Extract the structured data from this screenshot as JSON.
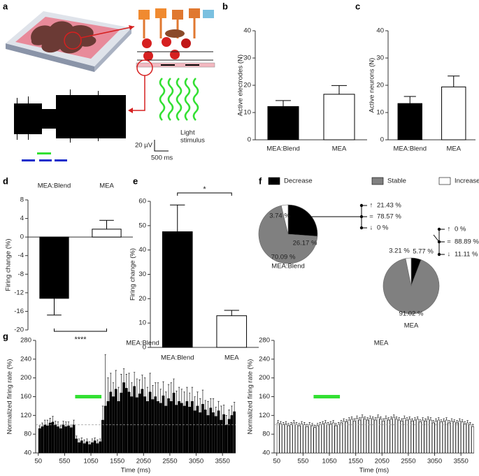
{
  "illustration": {
    "panel": "a",
    "scale_y": "20 µV",
    "scale_x": "500 ms",
    "stimulus_label": [
      "Light",
      "stimulus"
    ]
  },
  "chart_data": [
    {
      "type": "bar",
      "panel": "b",
      "y_label": "Active electrodes (N)",
      "categories": [
        "MEA:Blend",
        "MEA"
      ],
      "values": [
        12.2,
        16.7
      ],
      "errors": [
        2.2,
        3.2
      ],
      "colors": [
        "#000000",
        "#ffffff"
      ],
      "ylim": [
        0,
        40
      ],
      "yticks": [
        0,
        10,
        20,
        30,
        40
      ]
    },
    {
      "type": "bar",
      "panel": "c",
      "y_label": "Active neurons (N)",
      "categories": [
        "MEA:Blend",
        "MEA"
      ],
      "values": [
        13.3,
        19.4
      ],
      "errors": [
        2.6,
        4.0
      ],
      "colors": [
        "#000000",
        "#ffffff"
      ],
      "ylim": [
        0,
        40
      ],
      "yticks": [
        0,
        10,
        20,
        30,
        40
      ]
    },
    {
      "type": "bar",
      "panel": "d",
      "y_label": "Firing change (%)",
      "categories": [
        "MEA:Blend",
        "MEA"
      ],
      "values": [
        -13.2,
        1.7
      ],
      "errors": [
        3.6,
        1.9
      ],
      "colors": [
        "#000000",
        "#ffffff"
      ],
      "ylim": [
        -20,
        8
      ],
      "yticks": [
        8,
        4,
        0,
        -4,
        -8,
        -12,
        -16,
        -20
      ],
      "significance": "****"
    },
    {
      "type": "bar",
      "panel": "e",
      "y_label": "Firing change (%)",
      "categories": [
        "MEA:Blend",
        "MEA"
      ],
      "values": [
        47.5,
        13.0
      ],
      "errors": [
        11.0,
        2.2
      ],
      "colors": [
        "#000000",
        "#ffffff"
      ],
      "ylim": [
        0,
        60
      ],
      "yticks": [
        0,
        10,
        20,
        30,
        40,
        50,
        60
      ],
      "significance": "*"
    },
    {
      "type": "pie",
      "panel": "f",
      "series_names": [
        "Decrease",
        "Stable",
        "Increase"
      ],
      "colors": [
        "#000000",
        "#808080",
        "#ffffff"
      ],
      "pies": [
        {
          "title": "MEA:Blend",
          "values": [
            26.17,
            70.09,
            3.74
          ],
          "value_labels": [
            "26.17 %",
            "70.09 %",
            "3.74 %"
          ],
          "breakdown": {
            "symbols": [
              "↑",
              "=",
              "↓"
            ],
            "values": [
              21.43,
              78.57,
              0
            ],
            "value_labels": [
              "21.43 %",
              "78.57 %",
              "0 %"
            ]
          }
        },
        {
          "title": "MEA",
          "values": [
            5.77,
            91.02,
            3.21
          ],
          "value_labels": [
            "5.77 %",
            "91.02 %",
            "3.21 %"
          ],
          "breakdown": {
            "symbols": [
              "↑",
              "=",
              "↓"
            ],
            "values": [
              0,
              88.89,
              11.11
            ],
            "value_labels": [
              "0 %",
              "88.89 %",
              "11.11 %"
            ]
          }
        }
      ]
    },
    {
      "type": "histogram",
      "panel": "g",
      "title": "MEA:Blend",
      "x_label": "Time (ms)",
      "y_label": "Normalized firing rate (%)",
      "color": "#000000",
      "xlim": [
        0,
        3800
      ],
      "xticks": [
        50,
        550,
        1050,
        1550,
        2050,
        2550,
        3050,
        3550
      ],
      "ylim": [
        40,
        280
      ],
      "yticks": [
        40,
        80,
        120,
        160,
        200,
        240,
        280
      ],
      "reference_line": 100,
      "stimulus": {
        "x": [
          750,
          1250
        ],
        "y": 160,
        "color": "#33e033"
      },
      "bins": [
        50,
        100,
        150,
        200,
        250,
        300,
        350,
        400,
        450,
        500,
        550,
        600,
        650,
        700,
        750,
        800,
        850,
        900,
        950,
        1000,
        1050,
        1100,
        1150,
        1200,
        1250,
        1300,
        1350,
        1400,
        1450,
        1500,
        1550,
        1600,
        1650,
        1700,
        1750,
        1800,
        1850,
        1900,
        1950,
        2000,
        2050,
        2100,
        2150,
        2200,
        2250,
        2300,
        2350,
        2400,
        2450,
        2500,
        2550,
        2600,
        2650,
        2700,
        2750,
        2800,
        2850,
        2900,
        2950,
        3000,
        3050,
        3100,
        3150,
        3200,
        3250,
        3300,
        3350,
        3400,
        3450,
        3500,
        3550,
        3600,
        3650,
        3700,
        3750,
        3800
      ],
      "values": [
        92,
        96,
        100,
        98,
        104,
        106,
        100,
        96,
        92,
        100,
        96,
        98,
        94,
        100,
        70,
        62,
        66,
        60,
        64,
        58,
        62,
        66,
        60,
        64,
        110,
        140,
        150,
        170,
        160,
        176,
        150,
        168,
        190,
        178,
        170,
        160,
        182,
        158,
        166,
        176,
        160,
        150,
        170,
        154,
        160,
        150,
        146,
        162,
        140,
        156,
        150,
        168,
        142,
        150,
        146,
        140,
        150,
        138,
        150,
        130,
        140,
        126,
        144,
        132,
        120,
        136,
        126,
        118,
        130,
        110,
        122,
        100,
        112,
        120,
        128
      ],
      "errors": [
        6,
        8,
        10,
        12,
        10,
        12,
        8,
        10,
        6,
        8,
        10,
        8,
        6,
        10,
        6,
        8,
        6,
        8,
        6,
        6,
        8,
        6,
        8,
        6,
        30,
        110,
        50,
        40,
        30,
        40,
        30,
        40,
        30,
        30,
        40,
        30,
        30,
        40,
        30,
        30,
        40,
        30,
        40,
        30,
        30,
        40,
        30,
        30,
        30,
        30,
        40,
        30,
        30,
        30,
        30,
        30,
        30,
        30,
        30,
        30,
        30,
        30,
        30,
        20,
        30,
        20,
        30,
        20,
        20,
        30,
        20,
        20,
        20,
        20,
        20
      ]
    },
    {
      "type": "histogram",
      "title": "MEA",
      "x_label": "Time (ms)",
      "y_label": "Normalized firing rate (%)",
      "color": "#ffffff",
      "xlim": [
        0,
        3800
      ],
      "xticks": [
        50,
        550,
        1050,
        1550,
        2050,
        2550,
        3050,
        3550
      ],
      "ylim": [
        40,
        280
      ],
      "yticks": [
        40,
        80,
        120,
        160,
        200,
        240,
        280
      ],
      "reference_line": 100,
      "stimulus": {
        "x": [
          750,
          1250
        ],
        "y": 160,
        "color": "#33e033"
      },
      "bins": [
        50,
        100,
        150,
        200,
        250,
        300,
        350,
        400,
        450,
        500,
        550,
        600,
        650,
        700,
        750,
        800,
        850,
        900,
        950,
        1000,
        1050,
        1100,
        1150,
        1200,
        1250,
        1300,
        1350,
        1400,
        1450,
        1500,
        1550,
        1600,
        1650,
        1700,
        1750,
        1800,
        1850,
        1900,
        1950,
        2000,
        2050,
        2100,
        2150,
        2200,
        2250,
        2300,
        2350,
        2400,
        2450,
        2500,
        2550,
        2600,
        2650,
        2700,
        2750,
        2800,
        2850,
        2900,
        2950,
        3000,
        3050,
        3100,
        3150,
        3200,
        3250,
        3300,
        3350,
        3400,
        3450,
        3500,
        3550,
        3600,
        3650,
        3700,
        3750,
        3800
      ],
      "values": [
        104,
        102,
        100,
        102,
        98,
        100,
        104,
        100,
        98,
        102,
        100,
        96,
        100,
        98,
        94,
        98,
        100,
        102,
        104,
        100,
        102,
        104,
        98,
        100,
        104,
        108,
        106,
        110,
        112,
        108,
        114,
        110,
        116,
        112,
        110,
        114,
        112,
        110,
        116,
        112,
        108,
        114,
        110,
        112,
        116,
        112,
        110,
        108,
        114,
        110,
        112,
        108,
        110,
        112,
        106,
        110,
        108,
        112,
        110,
        104,
        108,
        110,
        106,
        108,
        110,
        104,
        108,
        106,
        104,
        108,
        106,
        102,
        104,
        100,
        96
      ],
      "errors": [
        5,
        5,
        5,
        5,
        5,
        5,
        5,
        5,
        5,
        5,
        5,
        5,
        5,
        5,
        5,
        5,
        5,
        5,
        5,
        5,
        5,
        5,
        5,
        5,
        5,
        5,
        5,
        5,
        5,
        5,
        5,
        5,
        5,
        5,
        5,
        5,
        5,
        5,
        5,
        5,
        5,
        5,
        5,
        5,
        5,
        5,
        5,
        5,
        5,
        5,
        5,
        5,
        5,
        5,
        5,
        5,
        5,
        5,
        5,
        5,
        5,
        5,
        5,
        5,
        5,
        5,
        5,
        5,
        5,
        5,
        5,
        5,
        5,
        5,
        5
      ]
    }
  ]
}
